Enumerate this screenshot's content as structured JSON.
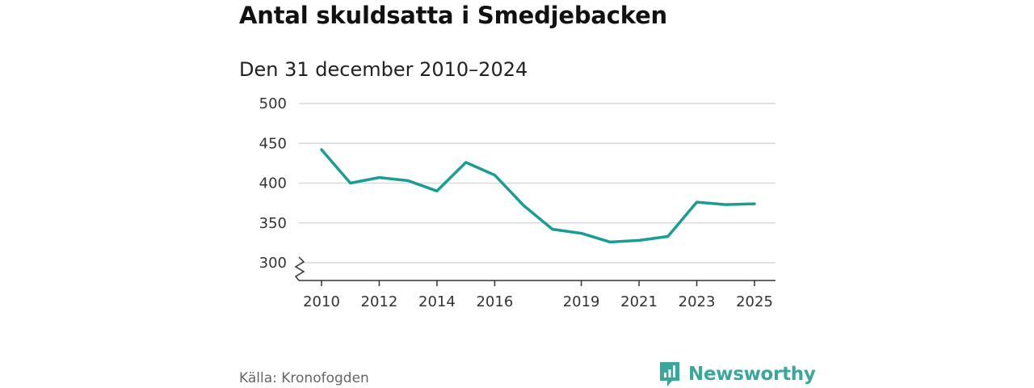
{
  "title": "Antal skuldsatta i Smedjebacken",
  "subtitle": "Den 31 december 2010–2024",
  "source": "Källa: Kronofogden",
  "brand": {
    "name": "Newsworthy",
    "icon": "bar-chart-icon"
  },
  "colors": {
    "line": "#1a9e94",
    "grid": "#d9d9d9",
    "axis": "#333333",
    "brand": "#3aa79c"
  },
  "chart_data": {
    "type": "line",
    "title": "Antal skuldsatta i Smedjebacken",
    "subtitle": "Den 31 december 2010–2024",
    "xlabel": "",
    "ylabel": "",
    "x_tick_labels": [
      "2010",
      "2012",
      "2014",
      "2016",
      "2019",
      "2021",
      "2023",
      "2025"
    ],
    "y_tick_labels": [
      "300",
      "350",
      "400",
      "450",
      "500"
    ],
    "xlim": [
      2010,
      2025
    ],
    "ylim": [
      280,
      500
    ],
    "y_axis_break": true,
    "grid": true,
    "series": [
      {
        "name": "Antal skuldsatta",
        "x": [
          2010,
          2011,
          2012,
          2013,
          2014,
          2015,
          2016,
          2017,
          2018,
          2019,
          2020,
          2021,
          2022,
          2023,
          2024,
          2025
        ],
        "values": [
          442,
          400,
          407,
          403,
          390,
          426,
          410,
          372,
          342,
          337,
          326,
          328,
          333,
          376,
          373,
          374
        ]
      }
    ]
  }
}
